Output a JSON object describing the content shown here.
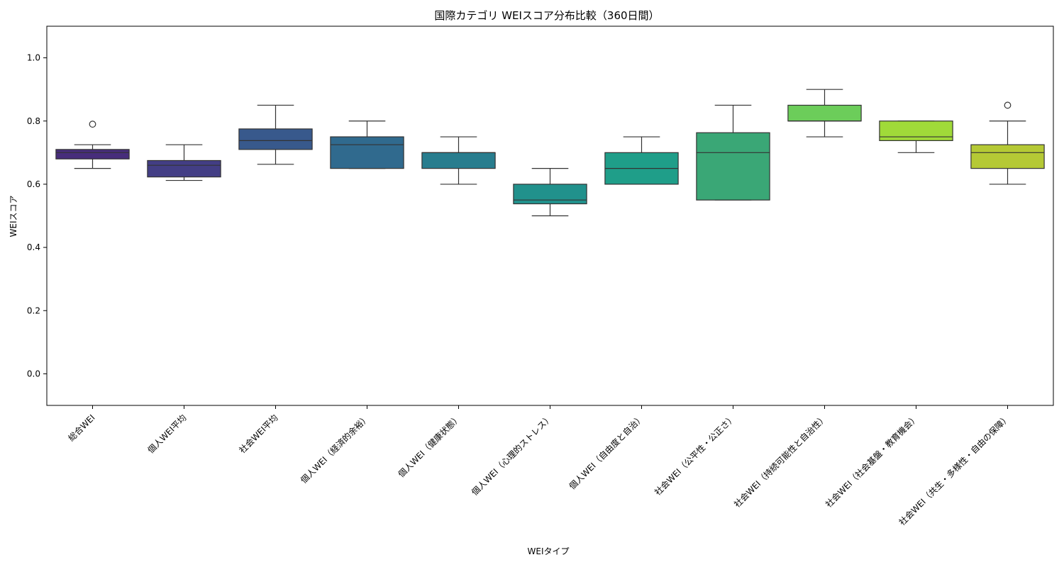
{
  "chart_data": {
    "type": "box",
    "title": "国際カテゴリ WEIスコア分布比較（360日間）",
    "xlabel": "WEIタイプ",
    "ylabel": "WEIスコア",
    "ylim": [
      -0.1,
      1.1
    ],
    "yticks": [
      "0.0",
      "0.2",
      "0.4",
      "0.6",
      "0.8",
      "1.0"
    ],
    "grid": false,
    "legend": "none",
    "categories": [
      "総合WEI",
      "個人WEI平均",
      "社会WEI平均",
      "個人WEI（経済的余裕）",
      "個人WEI（健康状態）",
      "個人WEI（心理的ストレス）",
      "個人WEI（自由度と自治）",
      "社会WEI（公平性・公正さ）",
      "社会WEI（持続可能性と自治性）",
      "社会WEI（社会基盤・教育機会）",
      "社会WEI（共生・多様性・自由の保障）"
    ],
    "boxes": [
      {
        "whisker_low": 0.65,
        "q1": 0.68,
        "median": 0.7,
        "q3": 0.71,
        "whisker_high": 0.725,
        "fliers": [
          0.79
        ],
        "color": "#472d7b"
      },
      {
        "whisker_low": 0.612,
        "q1": 0.623,
        "median": 0.66,
        "q3": 0.675,
        "whisker_high": 0.725,
        "fliers": [],
        "color": "#433e85"
      },
      {
        "whisker_low": 0.663,
        "q1": 0.71,
        "median": 0.738,
        "q3": 0.775,
        "whisker_high": 0.85,
        "fliers": [],
        "color": "#38598c"
      },
      {
        "whisker_low": 0.65,
        "q1": 0.65,
        "median": 0.725,
        "q3": 0.75,
        "whisker_high": 0.8,
        "fliers": [],
        "color": "#306a8e"
      },
      {
        "whisker_low": 0.6,
        "q1": 0.65,
        "median": 0.7,
        "q3": 0.7,
        "whisker_high": 0.75,
        "fliers": [],
        "color": "#287d8e"
      },
      {
        "whisker_low": 0.5,
        "q1": 0.538,
        "median": 0.55,
        "q3": 0.6,
        "whisker_high": 0.65,
        "fliers": [],
        "color": "#21918c"
      },
      {
        "whisker_low": 0.6,
        "q1": 0.6,
        "median": 0.65,
        "q3": 0.7,
        "whisker_high": 0.75,
        "fliers": [],
        "color": "#1f9e89"
      },
      {
        "whisker_low": 0.55,
        "q1": 0.55,
        "median": 0.7,
        "q3": 0.763,
        "whisker_high": 0.85,
        "fliers": [],
        "color": "#3aa776"
      },
      {
        "whisker_low": 0.75,
        "q1": 0.8,
        "median": 0.8,
        "q3": 0.85,
        "whisker_high": 0.9,
        "fliers": [],
        "color": "#6ccd5a"
      },
      {
        "whisker_low": 0.7,
        "q1": 0.738,
        "median": 0.75,
        "q3": 0.8,
        "whisker_high": 0.8,
        "fliers": [],
        "color": "#a0da39"
      },
      {
        "whisker_low": 0.6,
        "q1": 0.65,
        "median": 0.7,
        "q3": 0.725,
        "whisker_high": 0.8,
        "fliers": [
          0.85
        ],
        "color": "#b5c935"
      }
    ]
  }
}
